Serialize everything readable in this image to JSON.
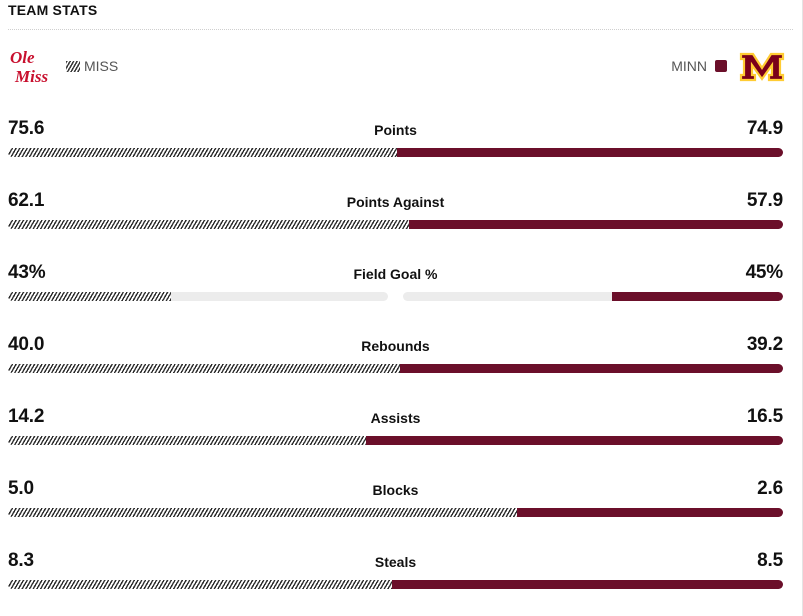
{
  "section": {
    "title": "TEAM STATS"
  },
  "teams": {
    "away": {
      "abbr": "MISS",
      "logo_text_1": "Ole",
      "logo_text_2": "Miss",
      "color": "#c8102e",
      "logo_icon": "ole-miss-logo-icon"
    },
    "home": {
      "abbr": "MINN",
      "logo_text": "M",
      "color": "#6b0f2a",
      "logo_icon": "minnesota-logo-icon"
    }
  },
  "colors": {
    "home_bar": "#6b0f2a",
    "away_bar_pattern": "#2c2c2c",
    "track": "#ececec"
  },
  "stats": [
    {
      "label": "Points",
      "away": "75.6",
      "home": "74.9",
      "split": false
    },
    {
      "label": "Points Against",
      "away": "62.1",
      "home": "57.9",
      "split": false
    },
    {
      "label": "Field Goal %",
      "away": "43%",
      "home": "45%",
      "split": true
    },
    {
      "label": "Rebounds",
      "away": "40.0",
      "home": "39.2",
      "split": false
    },
    {
      "label": "Assists",
      "away": "14.2",
      "home": "16.5",
      "split": false
    },
    {
      "label": "Blocks",
      "away": "5.0",
      "home": "2.6",
      "split": false
    },
    {
      "label": "Steals",
      "away": "8.3",
      "home": "8.5",
      "split": false
    }
  ]
}
